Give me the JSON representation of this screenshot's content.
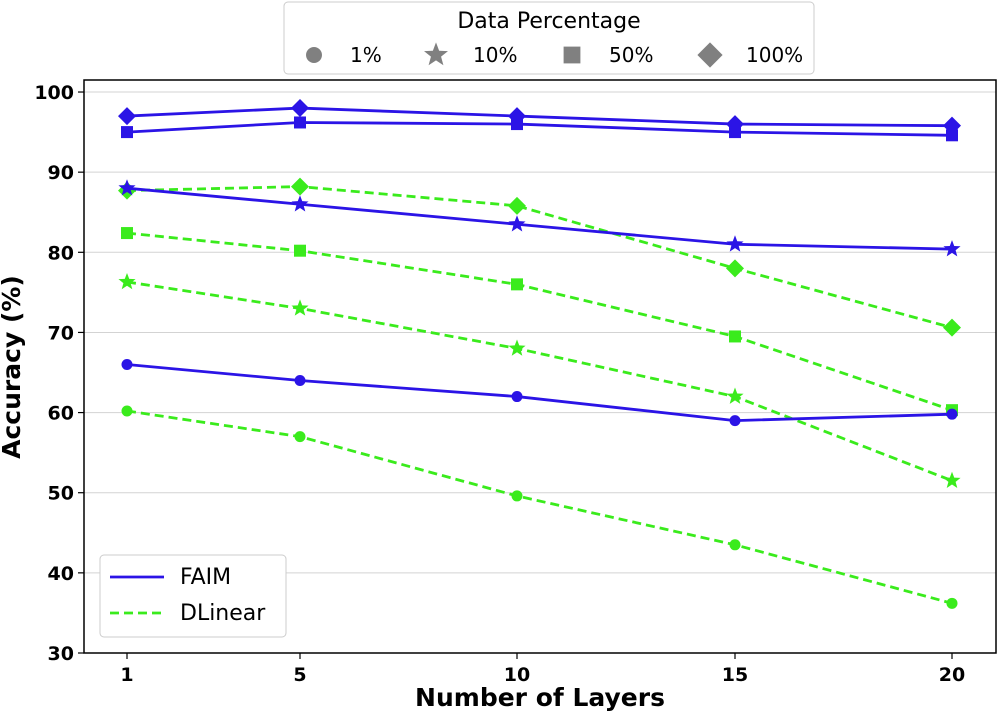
{
  "chart_data": {
    "type": "line",
    "title": "",
    "xlabel": "Number of Layers",
    "ylabel": "Accuracy (%)",
    "x": [
      1,
      5,
      10,
      15,
      20
    ],
    "x_tick_labels": [
      "1",
      "5",
      "10",
      "15",
      "20"
    ],
    "y_ticks": [
      30,
      40,
      50,
      60,
      70,
      80,
      90,
      100
    ],
    "y_tick_labels": [
      "30",
      "40",
      "50",
      "60",
      "70",
      "80",
      "90",
      "100"
    ],
    "ylim": [
      30,
      101.5
    ],
    "grid": "horizontal",
    "models": [
      {
        "name": "FAIM",
        "color": "#2b14e6",
        "style": "solid"
      },
      {
        "name": "DLinear",
        "color": "#3aeb1c",
        "style": "dashed"
      }
    ],
    "data_percentages": [
      {
        "label": "1%",
        "marker": "circle"
      },
      {
        "label": "10%",
        "marker": "star"
      },
      {
        "label": "50%",
        "marker": "square"
      },
      {
        "label": "100%",
        "marker": "diamond"
      }
    ],
    "series": [
      {
        "name": "FAIM 1%",
        "model": "FAIM",
        "marker": "circle",
        "values": [
          66.0,
          64.0,
          62.0,
          59.0,
          59.8
        ]
      },
      {
        "name": "FAIM 10%",
        "model": "FAIM",
        "marker": "star",
        "values": [
          88.0,
          86.0,
          83.5,
          81.0,
          80.4
        ]
      },
      {
        "name": "FAIM 50%",
        "model": "FAIM",
        "marker": "square",
        "values": [
          95.0,
          96.2,
          96.0,
          95.0,
          94.6
        ]
      },
      {
        "name": "FAIM 100%",
        "model": "FAIM",
        "marker": "diamond",
        "values": [
          97.0,
          98.0,
          97.0,
          96.0,
          95.8
        ]
      },
      {
        "name": "DLinear 1%",
        "model": "DLinear",
        "marker": "circle",
        "values": [
          60.2,
          57.0,
          49.6,
          43.5,
          36.2
        ]
      },
      {
        "name": "DLinear 10%",
        "model": "DLinear",
        "marker": "star",
        "values": [
          76.3,
          73.0,
          68.0,
          62.0,
          51.5
        ]
      },
      {
        "name": "DLinear 50%",
        "model": "DLinear",
        "marker": "square",
        "values": [
          82.4,
          80.2,
          76.0,
          69.5,
          60.3
        ]
      },
      {
        "name": "DLinear 100%",
        "model": "DLinear",
        "marker": "diamond",
        "values": [
          87.7,
          88.2,
          85.8,
          78.0,
          70.6
        ]
      }
    ],
    "legends": {
      "data_percentage": {
        "title": "Data Percentage",
        "placement": "top-center",
        "marker_color": "#808080"
      },
      "models": {
        "placement": "lower-left"
      }
    }
  }
}
